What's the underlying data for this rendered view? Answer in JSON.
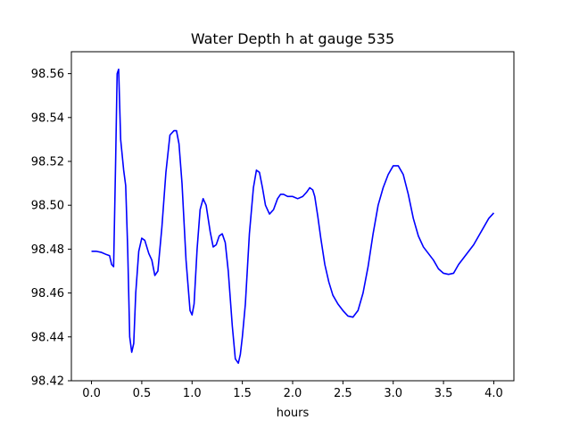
{
  "chart_data": {
    "type": "line",
    "title": "Water Depth h at gauge 535",
    "xlabel": "hours",
    "ylabel": "",
    "xlim": [
      -0.2,
      4.2
    ],
    "ylim": [
      98.42,
      98.57
    ],
    "grid": false,
    "x_ticks": [
      0.0,
      0.5,
      1.0,
      1.5,
      2.0,
      2.5,
      3.0,
      3.5,
      4.0
    ],
    "x_tick_labels": [
      "0.0",
      "0.5",
      "1.0",
      "1.5",
      "2.0",
      "2.5",
      "3.0",
      "3.5",
      "4.0"
    ],
    "y_ticks": [
      98.42,
      98.44,
      98.46,
      98.48,
      98.5,
      98.52,
      98.54,
      98.56
    ],
    "y_tick_labels": [
      "98.42",
      "98.44",
      "98.46",
      "98.48",
      "98.50",
      "98.52",
      "98.54",
      "98.56"
    ],
    "series": [
      {
        "color": "#0000ff",
        "x": [
          0.0,
          0.05,
          0.1,
          0.15,
          0.18,
          0.2,
          0.22,
          0.24,
          0.255,
          0.27,
          0.29,
          0.32,
          0.34,
          0.36,
          0.38,
          0.4,
          0.42,
          0.44,
          0.47,
          0.5,
          0.53,
          0.57,
          0.6,
          0.63,
          0.66,
          0.7,
          0.74,
          0.78,
          0.82,
          0.845,
          0.87,
          0.9,
          0.94,
          0.98,
          1.0,
          1.02,
          1.05,
          1.08,
          1.11,
          1.14,
          1.18,
          1.21,
          1.24,
          1.27,
          1.3,
          1.33,
          1.36,
          1.4,
          1.43,
          1.46,
          1.48,
          1.5,
          1.53,
          1.57,
          1.61,
          1.64,
          1.67,
          1.7,
          1.73,
          1.77,
          1.81,
          1.85,
          1.88,
          1.91,
          1.95,
          2.0,
          2.05,
          2.1,
          2.14,
          2.17,
          2.2,
          2.22,
          2.25,
          2.28,
          2.32,
          2.36,
          2.4,
          2.45,
          2.5,
          2.55,
          2.6,
          2.65,
          2.7,
          2.75,
          2.8,
          2.85,
          2.9,
          2.95,
          3.0,
          3.05,
          3.1,
          3.15,
          3.2,
          3.25,
          3.3,
          3.35,
          3.4,
          3.45,
          3.5,
          3.55,
          3.6,
          3.65,
          3.7,
          3.75,
          3.8,
          3.85,
          3.9,
          3.95,
          4.0
        ],
        "y": [
          98.479,
          98.479,
          98.4785,
          98.4775,
          98.477,
          98.473,
          98.472,
          98.52,
          98.56,
          98.562,
          98.53,
          98.516,
          98.509,
          98.48,
          98.44,
          98.433,
          98.437,
          98.46,
          98.479,
          98.485,
          98.484,
          98.478,
          98.475,
          98.468,
          98.47,
          98.49,
          98.515,
          98.532,
          98.534,
          98.534,
          98.528,
          98.51,
          98.475,
          98.452,
          98.45,
          98.455,
          98.48,
          98.498,
          98.503,
          98.5,
          98.488,
          98.481,
          98.482,
          98.486,
          98.487,
          98.483,
          98.47,
          98.445,
          98.43,
          98.428,
          98.432,
          98.44,
          98.455,
          98.487,
          98.508,
          98.516,
          98.515,
          98.508,
          98.5,
          98.496,
          98.498,
          98.503,
          98.505,
          98.505,
          98.504,
          98.504,
          98.503,
          98.504,
          98.506,
          98.508,
          98.507,
          98.504,
          98.495,
          98.485,
          98.473,
          98.465,
          98.459,
          98.455,
          98.452,
          98.4495,
          98.449,
          98.452,
          98.46,
          98.472,
          98.487,
          98.5,
          98.508,
          98.514,
          98.518,
          98.518,
          98.514,
          98.505,
          98.494,
          98.486,
          98.481,
          98.478,
          98.475,
          98.471,
          98.469,
          98.4685,
          98.469,
          98.473,
          98.476,
          98.479,
          98.482,
          98.486,
          98.49,
          98.494,
          98.4965
        ]
      }
    ]
  }
}
